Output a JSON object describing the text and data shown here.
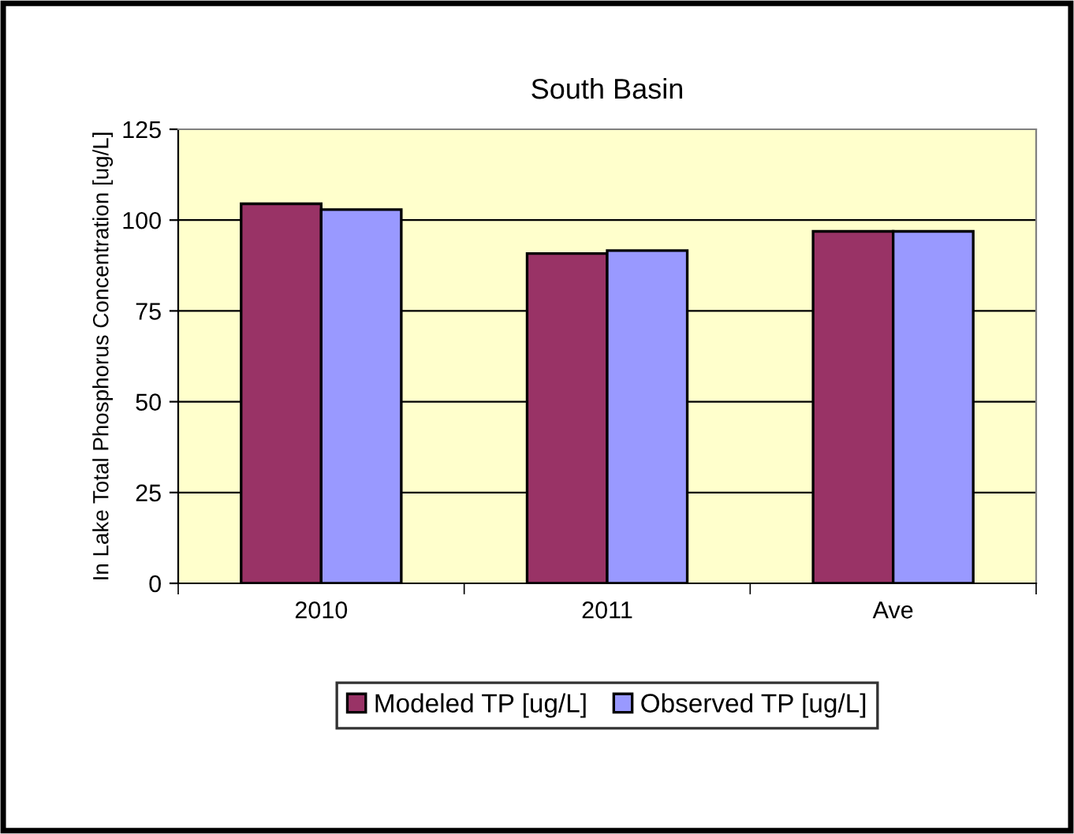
{
  "chart_data": {
    "type": "bar",
    "title": "South Basin",
    "ylabel": "In Lake Total Phosphorus Concentration [ug/L]",
    "categories": [
      "2010",
      "2011",
      "Ave"
    ],
    "series": [
      {
        "name": "Modeled TP [ug/L]",
        "color": "#993366",
        "values": [
          104.5,
          90.8,
          96.9
        ]
      },
      {
        "name": "Observed TP [ug/L]",
        "color": "#9999ff",
        "values": [
          102.9,
          91.6,
          96.9
        ]
      }
    ],
    "ylim": [
      0,
      125
    ],
    "yticks": [
      0,
      25,
      50,
      75,
      100,
      125
    ],
    "grid": "y",
    "legend": "bottom"
  }
}
